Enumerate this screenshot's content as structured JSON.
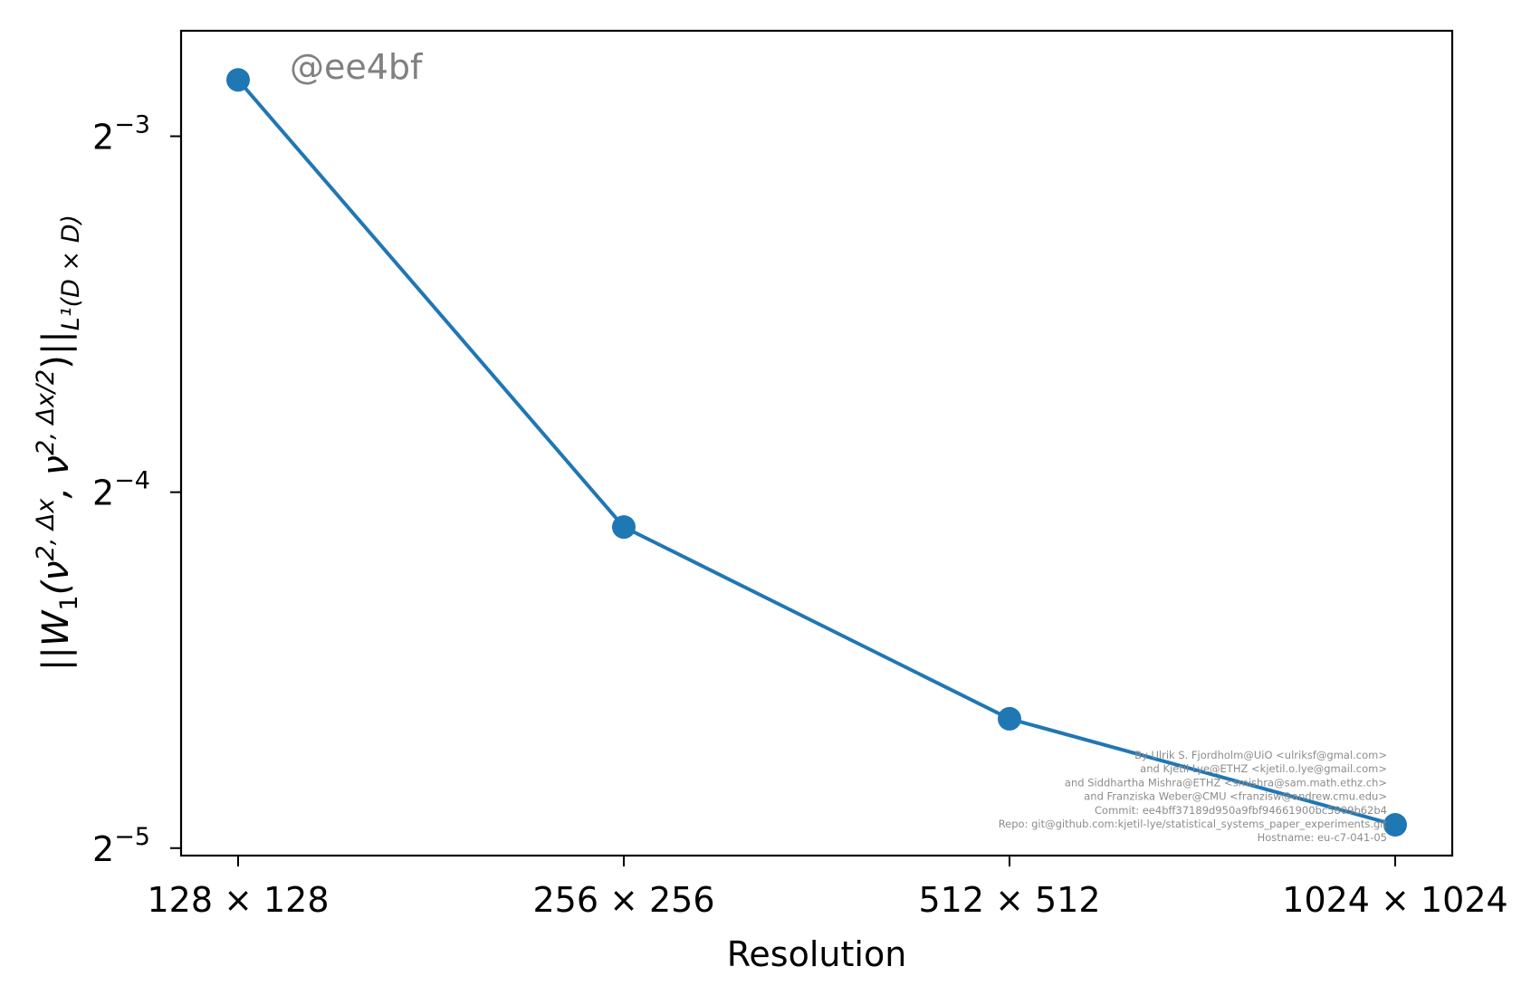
{
  "chart_data": {
    "type": "line",
    "x_scale": "categorical",
    "y_scale": "log2",
    "categories": [
      "128 × 128",
      "256 × 256",
      "512 × 512",
      "1024 × 1024"
    ],
    "series": [
      {
        "values": [
          0.1395,
          0.0584,
          0.0402,
          0.0327
        ],
        "color": "#1f77b4",
        "marker": "circle"
      }
    ],
    "ylim": [
      0.0308,
      0.1535
    ],
    "y_ticks": [
      {
        "value": 0.125,
        "base": "2",
        "exp": "−3"
      },
      {
        "value": 0.0625,
        "base": "2",
        "exp": "−4"
      },
      {
        "value": 0.03125,
        "base": "2",
        "exp": "−5"
      }
    ],
    "xlabel": "Resolution",
    "ylabel": {
      "main": "||W",
      "sub1": "1",
      "open": "(ν",
      "sup_a": "2, Δx",
      "mid": ", ν",
      "sup_b": "2, Δx/2",
      "close": ")||",
      "sub_norm": "L¹(D × D)"
    },
    "grid": false,
    "legend": "none",
    "watermark": "@ee4bf",
    "credits": [
      "By Ulrik S. Fjordholm@UiO <ulriksf@gmal.com>",
      "and Kjetil Lye@ETHZ <kjetil.o.lye@gmail.com>",
      "and Siddhartha Mishra@ETHZ <smishra@sam.math.ethz.ch>",
      "and Franziska Weber@CMU <franzisw@andrew.cmu.edu>",
      "Commit: ee4bff37189d950a9fbf94661900bc5809b62b4",
      "Repo: git@github.com:kjetil-lye/statistical_systems_paper_experiments.git",
      "Hostname: eu-c7-041-05"
    ]
  }
}
